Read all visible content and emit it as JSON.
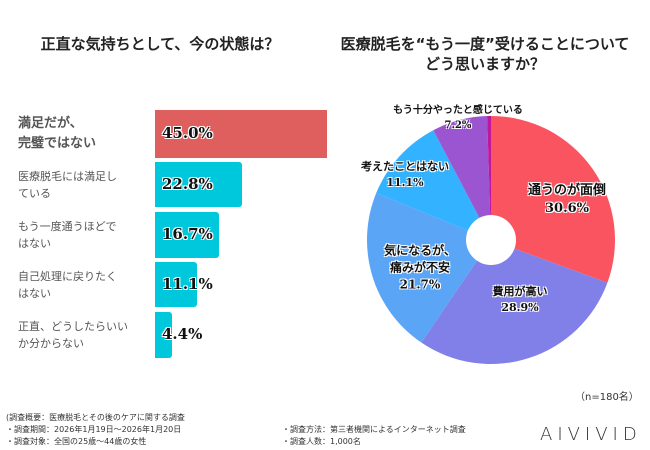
{
  "chart_data": [
    {
      "type": "bar",
      "orientation": "horizontal",
      "title": "正直な気持ちとして、今の状態は？",
      "categories": [
        "満足だが、\n完璧ではない",
        "医療脱毛には満足し\nている",
        "もう一度通うほどで\nはない",
        "自己処理に戻りたく\nはない",
        "正直、どうしたらいい\nか分からない"
      ],
      "values": [
        45.0,
        22.8,
        16.7,
        11.1,
        4.4
      ],
      "labels": [
        "45.0%",
        "22.8%",
        "16.7%",
        "11.1%",
        "4.4%"
      ],
      "colors": [
        "#df5f5f",
        "#00c8dc",
        "#00c8dc",
        "#00c8dc",
        "#00c8dc"
      ]
    },
    {
      "type": "pie",
      "donut": true,
      "title": "医療脱毛を“もう一度”受けることについて\nどう思いますか？",
      "categories": [
        "通うのが面倒",
        "費用が高い",
        "気になるが、\n痛みが不安",
        "考えたことはない",
        "もう十分やったと感じている",
        ""
      ],
      "values": [
        30.6,
        28.9,
        21.7,
        11.1,
        7.2,
        0.5
      ],
      "labels": [
        "30.6%",
        "28.9%",
        "21.7%",
        "11.1%",
        "7.2%",
        ""
      ],
      "colors": [
        "#fa5460",
        "#8080e8",
        "#5aa5f5",
        "#33b2ff",
        "#9b55d0",
        "#c0169a"
      ],
      "note": "（n=180名）"
    }
  ],
  "footer": {
    "overview": "(調査概要：医療脱毛とその後のケアに関する調査",
    "period": "・調査期間：2026年1月19日～2026年1月20日",
    "target": "・調査対象：全国の25歳～44歳の女性",
    "method": "・調査方法：第三者機関によるインターネット調査",
    "count": "・調査人数：1,000名",
    "logo": "AIVIVID"
  }
}
